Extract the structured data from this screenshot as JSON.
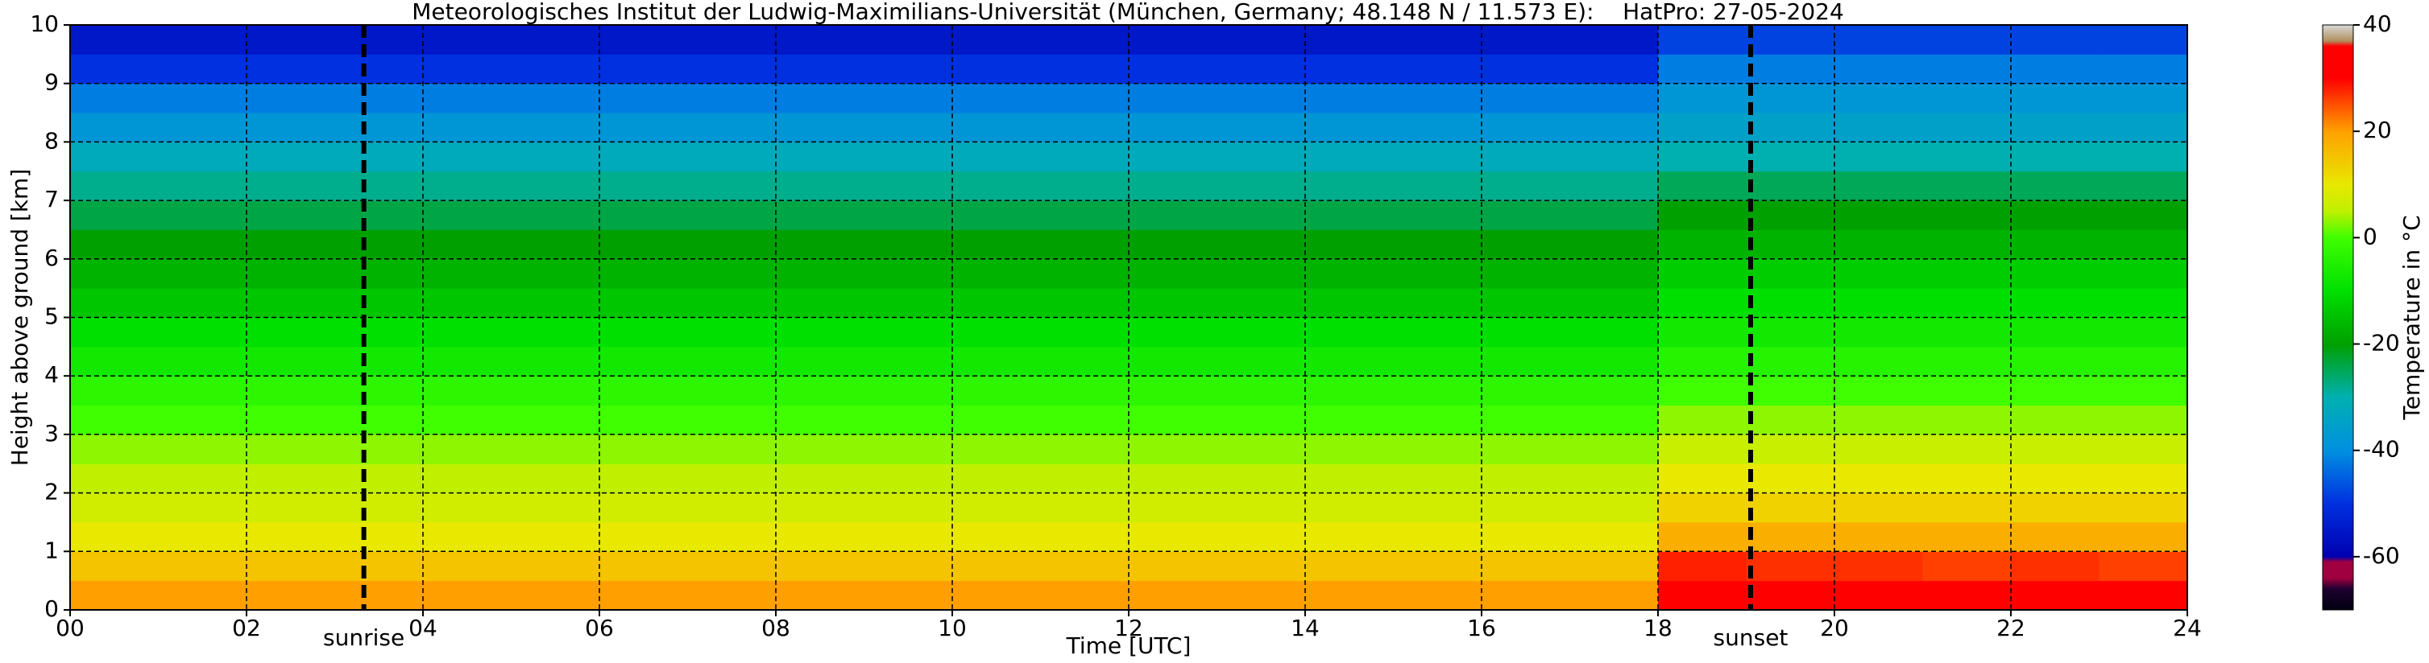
{
  "chart_data": {
    "type": "heatmap",
    "title": "Meteorologisches Institut der Ludwig-Maximilians-Universität (München, Germany; 48.148 N / 11.573 E):    HatPro: 27-05-2024",
    "x_label": "Time [UTC]",
    "y_label": "Height above ground [km]",
    "colorbar_label": "Temperature in °C",
    "x_edges": [
      0,
      1,
      2,
      3,
      4,
      5,
      6,
      7,
      8,
      9,
      10,
      11,
      12,
      13,
      14,
      15,
      16,
      17,
      18,
      19,
      20,
      21,
      22,
      23,
      24
    ],
    "y_edges": [
      0,
      0.5,
      1,
      1.5,
      2,
      2.5,
      3,
      3.5,
      4,
      4.5,
      5,
      5.5,
      6,
      6.5,
      7,
      7.5,
      8,
      8.5,
      9,
      9.5,
      10
    ],
    "values": [
      [
        20,
        20,
        20,
        20,
        20,
        20,
        20,
        20,
        20,
        20,
        20,
        20,
        20,
        20,
        20,
        20,
        20,
        20,
        32,
        32,
        31,
        31,
        31,
        31
      ],
      [
        15,
        15,
        15,
        15,
        15,
        15,
        15,
        15,
        15,
        15,
        15,
        15,
        15,
        15,
        15,
        15,
        15,
        15,
        28,
        27,
        27,
        26,
        27,
        26
      ],
      [
        10,
        10,
        10,
        10,
        10,
        10,
        10,
        10,
        10,
        10,
        10,
        10,
        10,
        10,
        10,
        10,
        10,
        10,
        18,
        18,
        18,
        18,
        18,
        18
      ],
      [
        7,
        7,
        7,
        7,
        7,
        7,
        7,
        7,
        7,
        7,
        7,
        7,
        7,
        7,
        7,
        7,
        7,
        7,
        13,
        13,
        13,
        13,
        13,
        13
      ],
      [
        5,
        5,
        5,
        5,
        5,
        5,
        5,
        5,
        5,
        5,
        5,
        5,
        5,
        5,
        5,
        5,
        5,
        5,
        10,
        10,
        10,
        10,
        10,
        10
      ],
      [
        3,
        3,
        3,
        3,
        3,
        3,
        3,
        3,
        3,
        3,
        3,
        3,
        3,
        3,
        3,
        3,
        3,
        3,
        6,
        6,
        6,
        6,
        6,
        6
      ],
      [
        0,
        0,
        0,
        0,
        0,
        0,
        0,
        0,
        0,
        0,
        0,
        0,
        0,
        0,
        0,
        0,
        0,
        0,
        3,
        3,
        3,
        3,
        3,
        3
      ],
      [
        -3,
        -3,
        -3,
        -3,
        -3,
        -3,
        -3,
        -3,
        -3,
        -3,
        -3,
        -3,
        -3,
        -3,
        -3,
        -3,
        -3,
        -3,
        0,
        0,
        0,
        0,
        0,
        0
      ],
      [
        -7,
        -7,
        -7,
        -7,
        -7,
        -7,
        -7,
        -7,
        -7,
        -7,
        -7,
        -7,
        -7,
        -7,
        -7,
        -7,
        -7,
        -7,
        -4,
        -4,
        -4,
        -4,
        -4,
        -4
      ],
      [
        -10,
        -10,
        -10,
        -10,
        -10,
        -10,
        -10,
        -10,
        -10,
        -10,
        -10,
        -10,
        -10,
        -10,
        -10,
        -10,
        -10,
        -10,
        -7,
        -7,
        -7,
        -7,
        -7,
        -7
      ],
      [
        -14,
        -14,
        -14,
        -14,
        -14,
        -14,
        -14,
        -14,
        -14,
        -14,
        -14,
        -14,
        -14,
        -14,
        -14,
        -14,
        -14,
        -14,
        -10,
        -10,
        -10,
        -10,
        -10,
        -10
      ],
      [
        -17,
        -17,
        -17,
        -17,
        -17,
        -17,
        -17,
        -17,
        -17,
        -17,
        -17,
        -17,
        -17,
        -17,
        -17,
        -17,
        -17,
        -17,
        -13,
        -13,
        -13,
        -13,
        -13,
        -13
      ],
      [
        -20,
        -20,
        -20,
        -20,
        -20,
        -20,
        -20,
        -20,
        -20,
        -20,
        -20,
        -20,
        -20,
        -20,
        -20,
        -20,
        -20,
        -20,
        -17,
        -17,
        -17,
        -17,
        -17,
        -17
      ],
      [
        -24,
        -24,
        -24,
        -24,
        -24,
        -24,
        -24,
        -24,
        -24,
        -24,
        -24,
        -24,
        -24,
        -24,
        -24,
        -24,
        -24,
        -24,
        -20,
        -20,
        -20,
        -20,
        -20,
        -20
      ],
      [
        -28,
        -28,
        -28,
        -28,
        -28,
        -28,
        -28,
        -28,
        -28,
        -28,
        -28,
        -28,
        -28,
        -28,
        -28,
        -28,
        -28,
        -28,
        -25,
        -25,
        -25,
        -25,
        -25,
        -25
      ],
      [
        -32,
        -32,
        -32,
        -32,
        -32,
        -32,
        -32,
        -32,
        -32,
        -32,
        -32,
        -32,
        -32,
        -32,
        -32,
        -32,
        -32,
        -32,
        -30,
        -30,
        -30,
        -30,
        -30,
        -30
      ],
      [
        -38,
        -38,
        -38,
        -38,
        -38,
        -38,
        -38,
        -38,
        -38,
        -38,
        -38,
        -38,
        -38,
        -38,
        -38,
        -38,
        -38,
        -38,
        -35,
        -35,
        -35,
        -35,
        -35,
        -35
      ],
      [
        -42,
        -42,
        -42,
        -42,
        -42,
        -42,
        -42,
        -42,
        -42,
        -42,
        -42,
        -42,
        -42,
        -42,
        -42,
        -42,
        -42,
        -42,
        -38,
        -38,
        -38,
        -38,
        -38,
        -38
      ],
      [
        -50,
        -50,
        -50,
        -50,
        -50,
        -50,
        -50,
        -50,
        -50,
        -50,
        -50,
        -50,
        -50,
        -50,
        -50,
        -50,
        -50,
        -50,
        -42,
        -42,
        -42,
        -42,
        -42,
        -42
      ],
      [
        -55,
        -55,
        -55,
        -55,
        -55,
        -55,
        -55,
        -55,
        -55,
        -55,
        -55,
        -55,
        -55,
        -55,
        -55,
        -55,
        -55,
        -55,
        -48,
        -48,
        -48,
        -48,
        -48,
        -48
      ]
    ],
    "colorscale": [
      [
        -70,
        "#000010"
      ],
      [
        -66,
        "#200030"
      ],
      [
        -64,
        "#a00040"
      ],
      [
        -61,
        "#a00040"
      ],
      [
        -60,
        "#0000b0"
      ],
      [
        -50,
        "#0030e0"
      ],
      [
        -40,
        "#0090e0"
      ],
      [
        -30,
        "#00b0b0"
      ],
      [
        -20,
        "#00a000"
      ],
      [
        -10,
        "#00e000"
      ],
      [
        0,
        "#40ff00"
      ],
      [
        5,
        "#c0f000"
      ],
      [
        10,
        "#e8e800"
      ],
      [
        20,
        "#ffa000"
      ],
      [
        30,
        "#ff0000"
      ],
      [
        36,
        "#ff0000"
      ],
      [
        37,
        "#b09060"
      ],
      [
        40,
        "#d8d8d8"
      ]
    ],
    "clim": [
      -70,
      40
    ],
    "cticks": [
      -60,
      -40,
      -20,
      0,
      20,
      40
    ],
    "xlim": [
      0,
      24
    ],
    "ylim": [
      0,
      10
    ],
    "xticks": [
      {
        "value": 0,
        "label": "00"
      },
      {
        "value": 2,
        "label": "02"
      },
      {
        "value": 4,
        "label": "04"
      },
      {
        "value": 6,
        "label": "06"
      },
      {
        "value": 8,
        "label": "08"
      },
      {
        "value": 10,
        "label": "10"
      },
      {
        "value": 12,
        "label": "12"
      },
      {
        "value": 14,
        "label": "14"
      },
      {
        "value": 16,
        "label": "16"
      },
      {
        "value": 18,
        "label": "18"
      },
      {
        "value": 20,
        "label": "20"
      },
      {
        "value": 22,
        "label": "22"
      },
      {
        "value": 24,
        "label": "24"
      }
    ],
    "yticks": [
      0,
      1,
      2,
      3,
      4,
      5,
      6,
      7,
      8,
      9,
      10
    ],
    "grid": true,
    "markers": [
      {
        "label": "sunrise",
        "x": 3.33
      },
      {
        "label": "sunset",
        "x": 19.05
      }
    ]
  }
}
